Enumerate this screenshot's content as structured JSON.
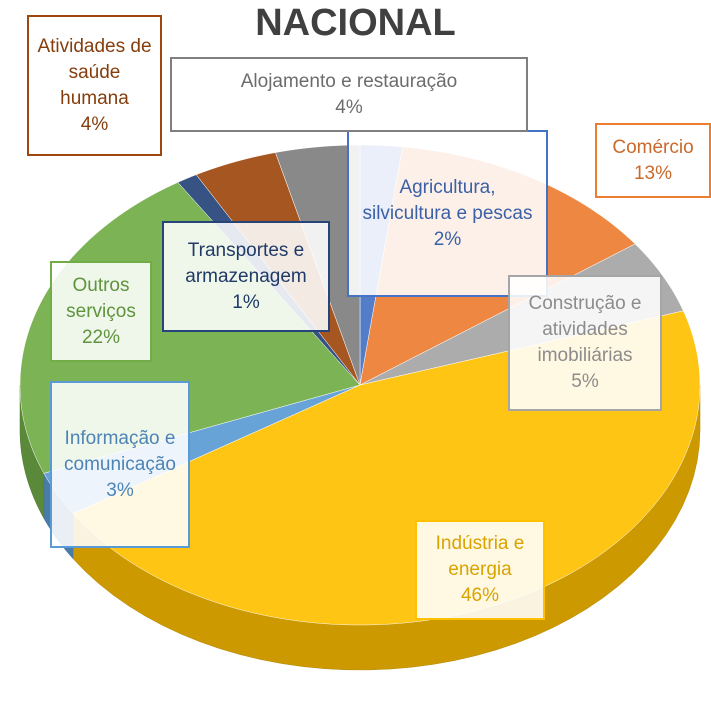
{
  "chart_data": {
    "type": "pie3d",
    "title": "NACIONAL",
    "categories": [
      "Agricultura, silvicultura e pescas",
      "Comércio",
      "Construção e atividades imobiliárias",
      "Indústria e energia",
      "Informação e comunicação",
      "Outros serviços",
      "Transportes e armazenagem",
      "Atividades de saúde humana",
      "Alojamento e restauração"
    ],
    "values": [
      2,
      13,
      5,
      46,
      3,
      22,
      1,
      4,
      4
    ],
    "value_labels": [
      "2%",
      "13%",
      "5%",
      "46%",
      "3%",
      "22%",
      "1%",
      "4%",
      "4%"
    ],
    "colors": [
      "#4472c4",
      "#ed7d31",
      "#a5a5a5",
      "#ffc000",
      "#5b9bd5",
      "#70ad47",
      "#264478",
      "#9e480e",
      "#7f7f7f"
    ]
  }
}
